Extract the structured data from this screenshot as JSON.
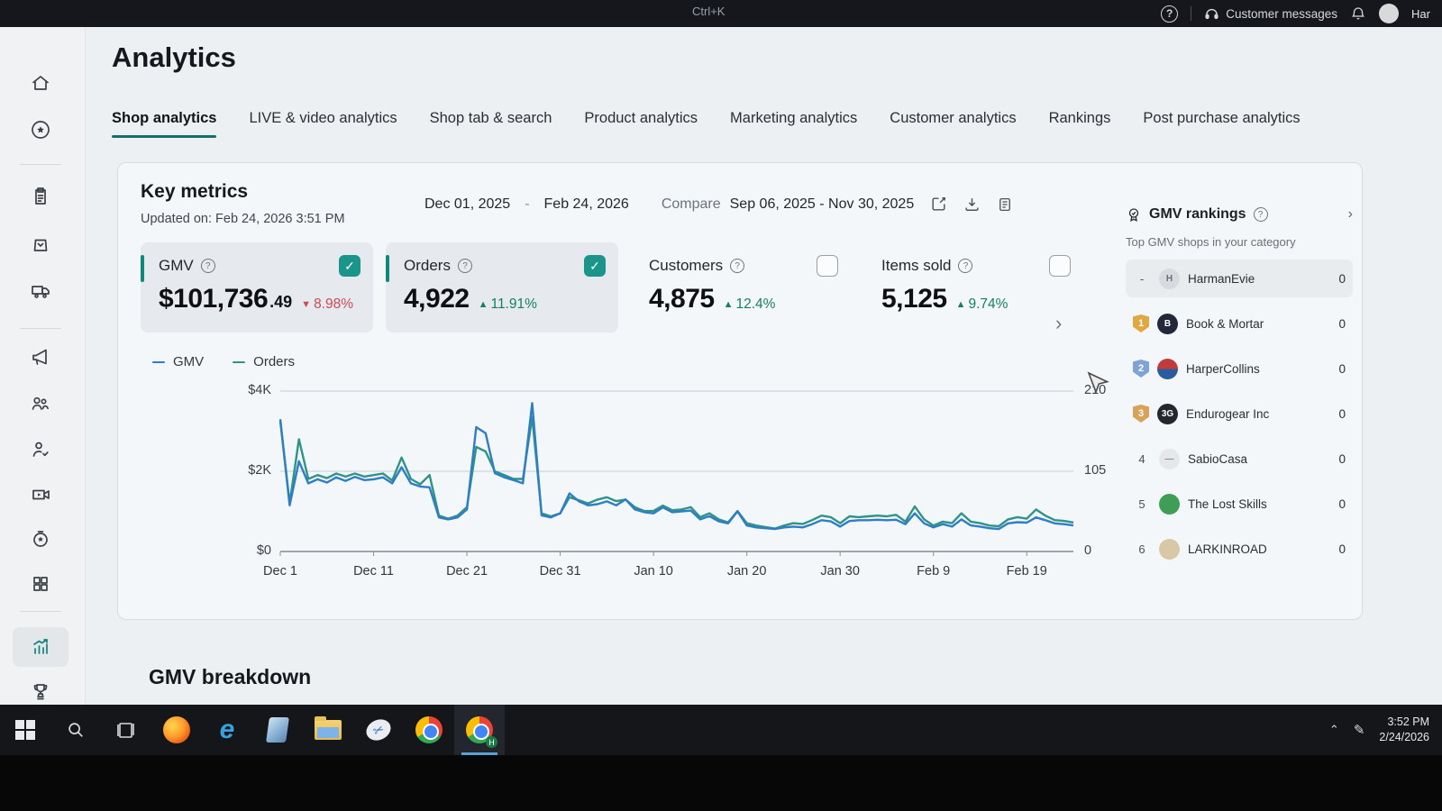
{
  "theme": {
    "accent": "#13857b",
    "negative": "#cc4a52",
    "positive": "#15805f"
  },
  "topbar": {
    "shortcut_hint": "Ctrl+K",
    "customer_messages_label": "Customer messages",
    "username": "Har",
    "icons": [
      "help",
      "headset",
      "bell",
      "avatar"
    ]
  },
  "page": {
    "title": "Analytics",
    "tabs": [
      {
        "label": "Shop analytics",
        "active": true
      },
      {
        "label": "LIVE & video analytics",
        "active": false
      },
      {
        "label": "Shop tab & search",
        "active": false
      },
      {
        "label": "Product analytics",
        "active": false
      },
      {
        "label": "Marketing analytics",
        "active": false
      },
      {
        "label": "Customer analytics",
        "active": false
      },
      {
        "label": "Rankings",
        "active": false
      },
      {
        "label": "Post purchase analytics",
        "active": false
      }
    ]
  },
  "sidebar": {
    "icons": [
      "home",
      "discover",
      "orders",
      "products",
      "shipping",
      "marketing",
      "affiliate",
      "customers",
      "live",
      "shop",
      "apps",
      "analytics",
      "growth"
    ],
    "active": "analytics"
  },
  "key_metrics": {
    "title": "Key metrics",
    "updated": "Updated on: Feb 24, 2026 3:51 PM",
    "date_start": "Dec 01, 2025",
    "date_separator": "-",
    "date_end": "Feb 24, 2026",
    "compare_label": "Compare",
    "compare_range": "Sep 06, 2025 - Nov 30, 2025",
    "toolbar_icons": [
      "edit",
      "download",
      "report"
    ],
    "cards": [
      {
        "label": "GMV",
        "value_main": "$101,736",
        "value_decimal": ".49",
        "delta": "8.98%",
        "direction": "down",
        "selected": true
      },
      {
        "label": "Orders",
        "value_main": "4,922",
        "delta": "11.91%",
        "direction": "up",
        "selected": true
      },
      {
        "label": "Customers",
        "value_main": "4,875",
        "delta": "12.4%",
        "direction": "up",
        "selected": false
      },
      {
        "label": "Items sold",
        "value_main": "5,125",
        "delta": "9.74%",
        "direction": "up",
        "selected": false
      }
    ]
  },
  "chart_data": {
    "type": "line",
    "x_tick_labels": [
      "Dec 1",
      "Dec 11",
      "Dec 21",
      "Dec 31",
      "Jan 10",
      "Jan 20",
      "Jan 30",
      "Feb 9",
      "Feb 19"
    ],
    "x_tick_positions": [
      0,
      10,
      20,
      30,
      40,
      50,
      60,
      70,
      80
    ],
    "y_left": {
      "labels": [
        "$4K",
        "$2K",
        "$0"
      ],
      "max": 4000
    },
    "y_right": {
      "labels": [
        "210",
        "105",
        "0"
      ],
      "max": 210
    },
    "grid": true,
    "legend_position": "top-left",
    "series": [
      {
        "name": "GMV",
        "axis": "left",
        "color": "#2f7dc4",
        "values": [
          3300,
          1150,
          2250,
          1700,
          1800,
          1720,
          1850,
          1760,
          1860,
          1780,
          1800,
          1850,
          1700,
          2100,
          1700,
          1620,
          1600,
          850,
          800,
          850,
          1050,
          3100,
          2950,
          1950,
          1850,
          1780,
          1700,
          3700,
          900,
          850,
          950,
          1450,
          1250,
          1150,
          1180,
          1250,
          1150,
          1300,
          1050,
          980,
          950,
          1100,
          980,
          1000,
          1020,
          800,
          880,
          750,
          700,
          1000,
          650,
          600,
          580,
          560,
          600,
          620,
          600,
          680,
          780,
          750,
          620,
          760,
          780,
          780,
          790,
          780,
          790,
          680,
          950,
          700,
          600,
          680,
          620,
          800,
          650,
          620,
          580,
          560,
          700,
          730,
          720,
          850,
          780,
          700,
          680,
          650
        ]
      },
      {
        "name": "Orders",
        "axis": "right",
        "color": "#2f9488",
        "values": [
          171,
          63,
          147,
          95,
          100,
          96,
          102,
          98,
          102,
          98,
          100,
          102,
          93,
          123,
          95,
          88,
          100,
          47,
          43,
          47,
          58,
          137,
          131,
          105,
          100,
          95,
          95,
          176,
          50,
          46,
          50,
          71,
          67,
          63,
          68,
          71,
          66,
          68,
          58,
          53,
          53,
          60,
          54,
          55,
          58,
          45,
          50,
          42,
          38,
          53,
          37,
          34,
          32,
          30,
          34,
          37,
          36,
          41,
          47,
          45,
          37,
          46,
          45,
          46,
          47,
          46,
          48,
          39,
          59,
          42,
          34,
          39,
          37,
          50,
          39,
          37,
          34,
          33,
          42,
          45,
          43,
          55,
          47,
          41,
          40,
          38
        ]
      }
    ]
  },
  "rankings": {
    "title": "GMV rankings",
    "subtitle": "Top GMV shops in your category",
    "rows": [
      {
        "rank": "-",
        "name": "HarmanEvie",
        "value": "0",
        "highlight": true,
        "avatar_bg": "#d7dade",
        "avatar_fg": "#6b7077",
        "avatar_text": "H"
      },
      {
        "rank": "1",
        "name": "Book & Mortar",
        "value": "0",
        "badge_color": "#e0a93f",
        "avatar_bg": "#232838",
        "avatar_text": "B"
      },
      {
        "rank": "2",
        "name": "HarperCollins",
        "value": "0",
        "badge_color": "#7ea3d4",
        "avatar_bg": "linear-gradient(180deg,#c23b3b 50%,#2a5ba0 50%)",
        "avatar_text": ""
      },
      {
        "rank": "3",
        "name": "Endurogear Inc",
        "value": "0",
        "badge_color": "#d8a258",
        "avatar_bg": "#24282e",
        "avatar_text": "3G"
      },
      {
        "rank": "4",
        "name": "SabioCasa",
        "value": "0",
        "avatar_bg": "#e6e7ea",
        "avatar_fg": "#8a8f95",
        "avatar_text": "—"
      },
      {
        "rank": "5",
        "name": "The Lost Skills",
        "value": "0",
        "avatar_bg": "#3f9e55",
        "avatar_text": ""
      },
      {
        "rank": "6",
        "name": "LARKINROAD",
        "value": "0",
        "avatar_bg": "#d8c8a6",
        "avatar_text": ""
      }
    ]
  },
  "breakdown_title": "GMV breakdown",
  "taskbar": {
    "icons": [
      "start",
      "search",
      "task-view",
      "firefox",
      "edge",
      "3d-viewer",
      "file-explorer",
      "snipping-tool",
      "chrome",
      "chrome-active"
    ],
    "active_badge": "H",
    "time": "3:52 PM",
    "date": "2/24/2026"
  }
}
